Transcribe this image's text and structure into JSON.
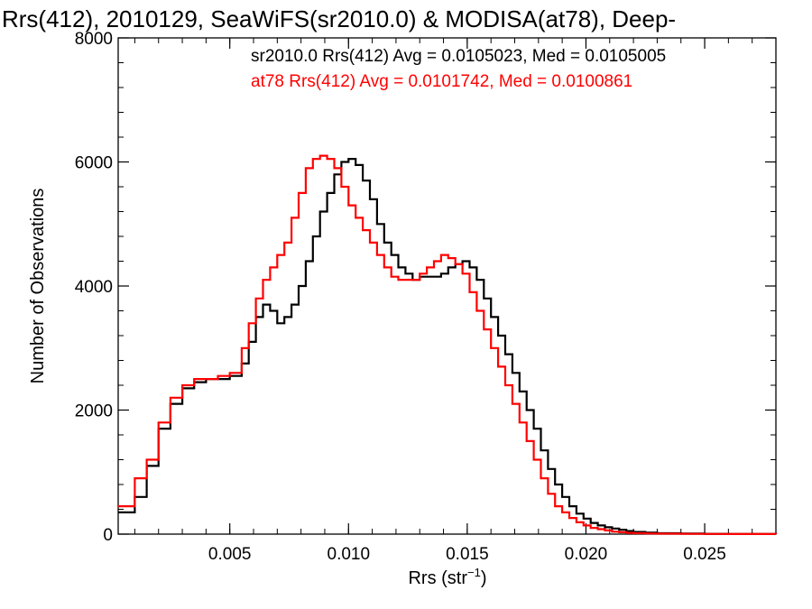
{
  "chart_data": {
    "type": "line",
    "title": "Rrs(412), 2010129, SeaWiFS(sr2010.0) & MODISA(at78), Deep-",
    "xlabel_main": "Rrs (str",
    "xlabel_sup": "−1",
    "xlabel_tail": ")",
    "ylabel": "Number of Observations",
    "xlim": [
      0.0003,
      0.028
    ],
    "ylim": [
      0,
      8000
    ],
    "x_ticks": [
      {
        "value": 0.005,
        "label": "0.005"
      },
      {
        "value": 0.01,
        "label": "0.010"
      },
      {
        "value": 0.015,
        "label": "0.015"
      },
      {
        "value": 0.02,
        "label": "0.020"
      },
      {
        "value": 0.025,
        "label": "0.025"
      }
    ],
    "y_ticks": [
      {
        "value": 0,
        "label": "0"
      },
      {
        "value": 2000,
        "label": "2000"
      },
      {
        "value": 4000,
        "label": "4000"
      },
      {
        "value": 6000,
        "label": "6000"
      },
      {
        "value": 8000,
        "label": "8000"
      }
    ],
    "x_minor_step": 0.001,
    "y_minor_step": 400,
    "grid": false,
    "legend_position": "top-right",
    "series": [
      {
        "name": "sr2010.0 Rrs(412) Avg = 0.0105023, Med = 0.0105005",
        "color": "#000000",
        "x": [
          0.0003,
          0.001,
          0.0015,
          0.002,
          0.0025,
          0.003,
          0.0035,
          0.004,
          0.0045,
          0.005,
          0.0055,
          0.0058,
          0.0061,
          0.0064,
          0.0067,
          0.007,
          0.0073,
          0.0076,
          0.0079,
          0.0082,
          0.0085,
          0.0088,
          0.0091,
          0.0094,
          0.0097,
          0.01,
          0.0103,
          0.0106,
          0.0109,
          0.0112,
          0.0115,
          0.0118,
          0.0121,
          0.0124,
          0.0127,
          0.013,
          0.0133,
          0.0136,
          0.0139,
          0.0142,
          0.0145,
          0.0148,
          0.0151,
          0.0154,
          0.0157,
          0.016,
          0.0163,
          0.0166,
          0.0169,
          0.0172,
          0.0175,
          0.0178,
          0.0181,
          0.0184,
          0.0187,
          0.019,
          0.0193,
          0.0196,
          0.0199,
          0.0202,
          0.0205,
          0.0208,
          0.0211,
          0.0214,
          0.0217,
          0.022,
          0.0225,
          0.023,
          0.024,
          0.025,
          0.026,
          0.027,
          0.028
        ],
        "y": [
          350,
          600,
          1100,
          1700,
          2100,
          2350,
          2450,
          2500,
          2500,
          2550,
          2750,
          3100,
          3500,
          3700,
          3600,
          3400,
          3500,
          3700,
          4000,
          4400,
          4800,
          5200,
          5500,
          5800,
          6000,
          6050,
          5950,
          5700,
          5400,
          5000,
          4700,
          4500,
          4300,
          4200,
          4100,
          4150,
          4150,
          4150,
          4200,
          4300,
          4350,
          4400,
          4300,
          4100,
          3800,
          3500,
          3200,
          2900,
          2600,
          2300,
          2000,
          1700,
          1350,
          1050,
          800,
          600,
          450,
          330,
          250,
          180,
          140,
          110,
          90,
          70,
          50,
          35,
          25,
          15,
          10,
          5,
          3,
          2,
          0
        ],
        "values": [
          350,
          600,
          1100,
          1700,
          2100,
          2350,
          2450,
          2500,
          2500,
          2550,
          2750,
          3100,
          3500,
          3700,
          3600,
          3400,
          3500,
          3700,
          4000,
          4400,
          4800,
          5200,
          5500,
          5800,
          6000,
          6050,
          5950,
          5700,
          5400,
          5000,
          4700,
          4500,
          4300,
          4200,
          4100,
          4150,
          4150,
          4150,
          4200,
          4300,
          4350,
          4400,
          4300,
          4100,
          3800,
          3500,
          3200,
          2900,
          2600,
          2300,
          2000,
          1700,
          1350,
          1050,
          800,
          600,
          450,
          330,
          250,
          180,
          140,
          110,
          90,
          70,
          50,
          35,
          25,
          15,
          10,
          5,
          3,
          2,
          0
        ]
      },
      {
        "name": "at78 Rrs(412) Avg = 0.0101742, Med = 0.0100861",
        "color": "#ff0000",
        "x": [
          0.0003,
          0.001,
          0.0015,
          0.002,
          0.0025,
          0.003,
          0.0035,
          0.004,
          0.0045,
          0.005,
          0.0055,
          0.0058,
          0.0061,
          0.0064,
          0.0067,
          0.007,
          0.0073,
          0.0076,
          0.0079,
          0.0082,
          0.0085,
          0.0088,
          0.0091,
          0.0094,
          0.0097,
          0.01,
          0.0103,
          0.0106,
          0.0109,
          0.0112,
          0.0115,
          0.0118,
          0.0121,
          0.0124,
          0.0127,
          0.013,
          0.0133,
          0.0136,
          0.0139,
          0.0142,
          0.0145,
          0.0148,
          0.0151,
          0.0154,
          0.0157,
          0.016,
          0.0163,
          0.0166,
          0.0169,
          0.0172,
          0.0175,
          0.0178,
          0.0181,
          0.0184,
          0.0187,
          0.019,
          0.0193,
          0.0196,
          0.0199,
          0.0202,
          0.0205,
          0.0208,
          0.0211,
          0.0214,
          0.0217,
          0.022,
          0.0225,
          0.023,
          0.024,
          0.025,
          0.026,
          0.027,
          0.028
        ],
        "y": [
          450,
          900,
          1200,
          1800,
          2200,
          2400,
          2500,
          2500,
          2550,
          2600,
          3000,
          3400,
          3800,
          4100,
          4300,
          4500,
          4700,
          5100,
          5500,
          5900,
          6050,
          6100,
          6050,
          5900,
          5600,
          5300,
          5100,
          4900,
          4700,
          4500,
          4300,
          4150,
          4100,
          4100,
          4100,
          4200,
          4300,
          4400,
          4500,
          4450,
          4350,
          4200,
          3900,
          3600,
          3300,
          3000,
          2700,
          2400,
          2100,
          1800,
          1500,
          1200,
          900,
          650,
          450,
          350,
          260,
          190,
          140,
          100,
          80,
          60,
          40,
          30,
          20,
          15,
          10,
          8,
          5,
          3,
          2,
          1,
          0
        ],
        "values": [
          450,
          900,
          1200,
          1800,
          2200,
          2400,
          2500,
          2500,
          2550,
          2600,
          3000,
          3400,
          3800,
          4100,
          4300,
          4500,
          4700,
          5100,
          5500,
          5900,
          6050,
          6100,
          6050,
          5900,
          5600,
          5300,
          5100,
          4900,
          4700,
          4500,
          4300,
          4150,
          4100,
          4100,
          4100,
          4200,
          4300,
          4400,
          4500,
          4450,
          4350,
          4200,
          3900,
          3600,
          3300,
          3000,
          2700,
          2400,
          2100,
          1800,
          1500,
          1200,
          900,
          650,
          450,
          350,
          260,
          190,
          140,
          100,
          80,
          60,
          40,
          30,
          20,
          15,
          10,
          8,
          5,
          3,
          2,
          1,
          0
        ]
      }
    ]
  }
}
